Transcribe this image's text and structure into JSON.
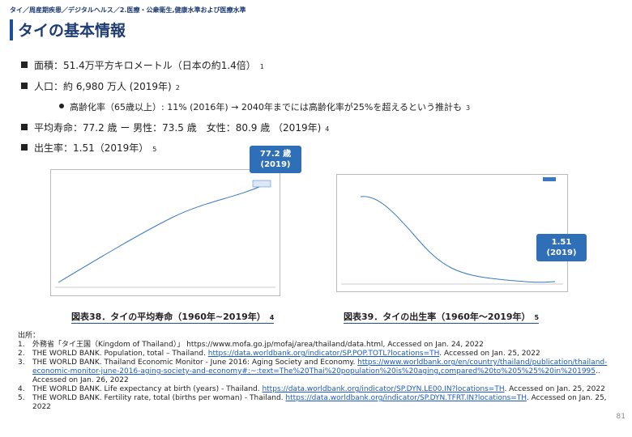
{
  "breadcrumb": "タイ／周産期疾患／デジタルヘルス／2.医療・公衆衛生,健康水準および医療水準",
  "title": "タイの基本情報",
  "bullets": [
    {
      "level": 1,
      "text": "面積：51.4万平方キロメートル（日本の約1.4倍）",
      "ref": "1"
    },
    {
      "level": 1,
      "text": "人口：約 6,980 万人 (2019年)",
      "ref": "2"
    },
    {
      "level": 2,
      "text": "高齢化率（65歳以上）: 11% (2016年) → 2040年までには高齢化率が25%を超えるという推計も",
      "ref": "3"
    },
    {
      "level": 1,
      "text": "平均寿命：77.2 歳 ー 男性：73.5 歳　女性：80.9 歳 （2019年)",
      "ref": "4"
    },
    {
      "level": 1,
      "text": "出生率：1.51（2019年）",
      "ref": "5"
    }
  ],
  "figures": [
    {
      "callout": [
        "77.2 歳",
        "(2019)"
      ],
      "caption": "図表38．タイの平均寿命（1960年~2019年）",
      "ref": "4"
    },
    {
      "callout": [
        "1.51",
        "(2019)"
      ],
      "caption": "図表39．タイの出生率（1960年～2019年）",
      "ref": "5"
    }
  ],
  "sources": {
    "heading": "出所：",
    "items": [
      {
        "num": "1.",
        "parts": [
          {
            "text": "外務省「タイ王国（Kingdom of Thailand）」 https://www.mofa.go.jp/mofaj/area/thailand/data.html, Accessed on Jan. 24, 2022"
          }
        ]
      },
      {
        "num": "2.",
        "parts": [
          {
            "text": "THE WORLD BANK. Population, total – Thailand. "
          },
          {
            "link": "https://data.worldbank.org/indicator/SP.POP.TOTL?locations=TH"
          },
          {
            "text": ". Accessed on Jan. 25, 2022"
          }
        ]
      },
      {
        "num": "3.",
        "parts": [
          {
            "text": "THE WORLD BANK. Thailand Economic Monitor - June 2016: Aging Society and Economy. "
          },
          {
            "link": "https://www.worldbank.org/en/country/thailand/publication/thailand-economic-monitor-june-2016-aging-society-and-economy#:~:text=The%20Thai%20population%20is%20aging,compared%20to%205%25%20in%201995"
          },
          {
            "text": ".. Accessed on Jan. 26, 2022"
          }
        ]
      },
      {
        "num": "4.",
        "parts": [
          {
            "text": "THE WORLD BANK. Life expectancy at birth (years) - Thailand. "
          },
          {
            "link": "https://data.worldbank.org/indicator/SP.DYN.LE00.IN?locations=TH"
          },
          {
            "text": ". Accessed on Jan. 25, 2022"
          }
        ]
      },
      {
        "num": "5.",
        "parts": [
          {
            "text": "THE WORLD BANK. Fertility rate, total (births per woman) - Thailand. "
          },
          {
            "link": "https://data.worldbank.org/indicator/SP.DYN.TFRT.IN?locations=TH"
          },
          {
            "text": ". Accessed on Jan. 25, 2022"
          }
        ]
      }
    ]
  },
  "page_number": "81"
}
